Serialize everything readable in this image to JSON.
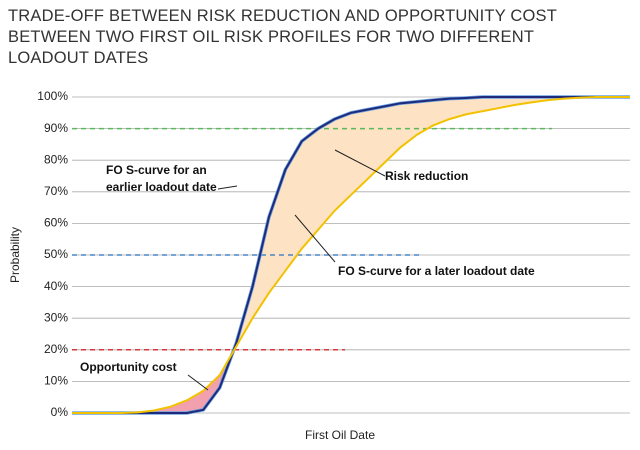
{
  "chart_data": {
    "type": "line",
    "title": "TRADE-OFF BETWEEN RISK REDUCTION AND OPPORTUNITY COST BETWEEN TWO FIRST OIL RISK PROFILES FOR TWO DIFFERENT LOADOUT DATES",
    "x_label": "First Oil Date",
    "y_label": "Probability",
    "categories": [
      null,
      null,
      null,
      null,
      null,
      null,
      null,
      null,
      null,
      null,
      null,
      null,
      null,
      null,
      null,
      null,
      null,
      null,
      null,
      null,
      null,
      null,
      null,
      null,
      null,
      null,
      null,
      null,
      null,
      null,
      null,
      null,
      null,
      null,
      null
    ],
    "series": [
      {
        "name": "FO S-curve for an earlier loadout date",
        "color": "#1f2a7a",
        "values": [
          0,
          0,
          0,
          0,
          0,
          0,
          0,
          0,
          1,
          8,
          22,
          40,
          62,
          77,
          86,
          90,
          93,
          95,
          96,
          97,
          98,
          98.5,
          99,
          99.5,
          99.7,
          100,
          100,
          100,
          100,
          100,
          100,
          100,
          100,
          100,
          100
        ]
      },
      {
        "name": "FO S-curve for a later loadout date",
        "color": "#f2c200",
        "values": [
          0,
          0,
          0,
          0,
          0.2,
          0.8,
          2,
          4,
          7,
          12,
          21,
          30,
          38,
          45,
          52,
          58,
          64,
          69,
          74,
          79,
          84,
          88,
          91,
          93,
          94.5,
          95.5,
          96.5,
          97.5,
          98.3,
          99,
          99.5,
          99.8,
          100,
          100,
          100
        ]
      }
    ],
    "annotations": [
      "Risk reduction",
      "Opportunity cost"
    ],
    "reference_lines": [
      {
        "value": 90,
        "color": "#5cb85c"
      },
      {
        "value": 50,
        "color": "#4a86c8"
      },
      {
        "value": 20,
        "color": "#d9363e"
      }
    ],
    "fill_colors": {
      "gain": "#fde3c3",
      "loss": "#f2a0ae"
    },
    "ylim": [
      0,
      100
    ],
    "yticks": [
      {
        "value": 0,
        "label": "0%"
      },
      {
        "value": 10,
        "label": "10%"
      },
      {
        "value": 20,
        "label": "20%"
      },
      {
        "value": 30,
        "label": "30%"
      },
      {
        "value": 40,
        "label": "40%"
      },
      {
        "value": 50,
        "label": "50%"
      },
      {
        "value": 60,
        "label": "60%"
      },
      {
        "value": 70,
        "label": "70%"
      },
      {
        "value": 80,
        "label": "80%"
      },
      {
        "value": 90,
        "label": "90%"
      },
      {
        "value": 100,
        "label": "100%"
      }
    ],
    "grid": true
  }
}
